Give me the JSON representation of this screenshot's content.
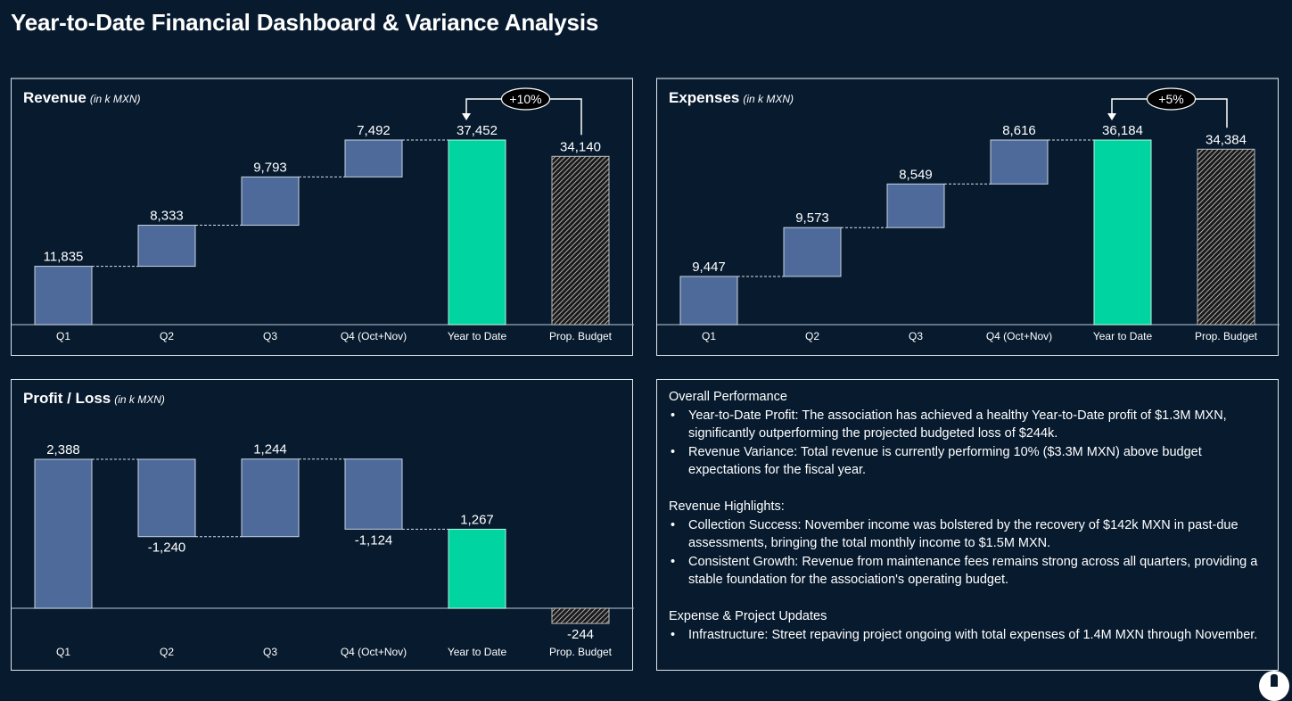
{
  "page": {
    "title": "Year-to-Date Financial Dashboard & Variance Analysis"
  },
  "colors": {
    "background": "#071a2e",
    "quarter_bar": "#4d6a9a",
    "ytd_bar": "#00d4a0",
    "budget_hatch": "#d0d0d0",
    "text": "#ffffff"
  },
  "chart_data": [
    {
      "id": "revenue",
      "type": "bar",
      "subtype": "waterfall",
      "title": "Revenue",
      "unit": "(in k MXN)",
      "categories": [
        "Q1",
        "Q2",
        "Q3",
        "Q4 (Oct+Nov)",
        "Year to Date",
        "Prop. Budget"
      ],
      "values": [
        11835,
        8333,
        9793,
        7492,
        37452,
        34140
      ],
      "labels": [
        "11,835",
        "8,333",
        "9,793",
        "7,492",
        "37,452",
        "34,140"
      ],
      "bar_kinds": [
        "delta",
        "delta",
        "delta",
        "delta",
        "total",
        "budget"
      ],
      "variance_badge": "+10%",
      "ylim": [
        0,
        37452
      ]
    },
    {
      "id": "expenses",
      "type": "bar",
      "subtype": "waterfall",
      "title": "Expenses",
      "unit": "(in k MXN)",
      "categories": [
        "Q1",
        "Q2",
        "Q3",
        "Q4 (Oct+Nov)",
        "Year to Date",
        "Prop. Budget"
      ],
      "values": [
        9447,
        9573,
        8549,
        8616,
        36184,
        34384
      ],
      "labels": [
        "9,447",
        "9,573",
        "8,549",
        "8,616",
        "36,184",
        "34,384"
      ],
      "bar_kinds": [
        "delta",
        "delta",
        "delta",
        "delta",
        "total",
        "budget"
      ],
      "variance_badge": "+5%",
      "ylim": [
        0,
        36184
      ]
    },
    {
      "id": "profit",
      "type": "bar",
      "subtype": "waterfall",
      "title": "Profit / Loss",
      "unit": "(in k MXN)",
      "categories": [
        "Q1",
        "Q2",
        "Q3",
        "Q4 (Oct+Nov)",
        "Year to Date",
        "Prop. Budget"
      ],
      "values": [
        2388,
        -1240,
        1244,
        -1124,
        1267,
        -244
      ],
      "labels": [
        "2,388",
        "-1,240",
        "1,244",
        "-1,124",
        "1,267",
        "-244"
      ],
      "bar_kinds": [
        "delta",
        "delta",
        "delta",
        "delta",
        "total",
        "budget"
      ],
      "variance_badge": null,
      "ylim": [
        -300,
        2388
      ]
    }
  ],
  "notes": {
    "sections": [
      {
        "heading": "Overall Performance",
        "bullets": [
          "Year-to-Date Profit: The association has achieved a healthy Year-to-Date profit of $1.3M MXN, significantly outperforming the projected budgeted loss of $244k.",
          "Revenue Variance: Total revenue is currently performing 10% ($3.3M MXN) above budget expectations for the fiscal year."
        ]
      },
      {
        "heading": "Revenue Highlights:",
        "bullets": [
          "Collection Success: November income was bolstered by the recovery of $142k MXN in past-due assessments, bringing the total monthly income to $1.5M MXN.",
          "Consistent Growth: Revenue from maintenance fees remains strong across all quarters, providing a stable foundation for the association's operating budget."
        ]
      },
      {
        "heading": "Expense & Project Updates",
        "bullets": [
          "Infrastructure: Street repaving project ongoing with total expenses of 1.4M MXN through November."
        ]
      }
    ]
  }
}
